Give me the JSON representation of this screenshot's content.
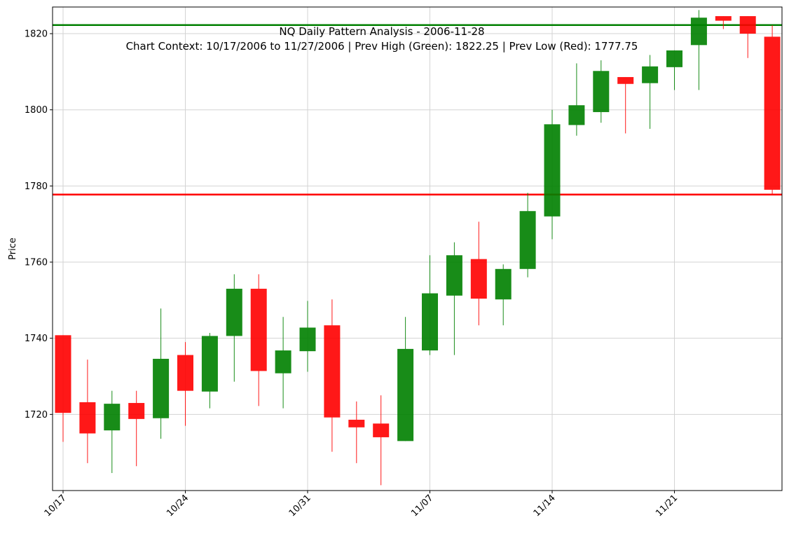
{
  "chart_data": {
    "type": "candlestick",
    "title": "NQ Daily Pattern Analysis - 2006-11-28",
    "subtitle": "Chart Context: 10/17/2006 to 11/27/2006 | Prev High (Green): 1822.25 | Prev Low (Red): 1777.75",
    "ylabel": "Price",
    "xlabel": "",
    "ylim": [
      1700,
      1827
    ],
    "y_ticks": [
      1720,
      1740,
      1760,
      1780,
      1800,
      1820
    ],
    "x_ticks": [
      {
        "label": "10/17",
        "index": 0
      },
      {
        "label": "10/24",
        "index": 5
      },
      {
        "label": "10/31",
        "index": 10
      },
      {
        "label": "11/07",
        "index": 15
      },
      {
        "label": "11/14",
        "index": 20
      },
      {
        "label": "11/21",
        "index": 25
      }
    ],
    "grid": true,
    "colors": {
      "up": "#008000",
      "down": "#ff0000",
      "prev_high": "#008000",
      "prev_low": "#ff0000"
    },
    "reference_lines": [
      {
        "value": 1822.25,
        "color": "#008000"
      },
      {
        "value": 1777.75,
        "color": "#ff0000"
      }
    ],
    "candles": [
      {
        "date": "10/17",
        "open": 1740.8,
        "high": 1740.8,
        "low": 1712.8,
        "close": 1720.4
      },
      {
        "date": "10/18",
        "open": 1723.2,
        "high": 1734.4,
        "low": 1707.2,
        "close": 1715.0
      },
      {
        "date": "10/19",
        "open": 1715.8,
        "high": 1726.2,
        "low": 1704.6,
        "close": 1722.8
      },
      {
        "date": "10/20",
        "open": 1723.0,
        "high": 1726.2,
        "low": 1706.4,
        "close": 1718.8
      },
      {
        "date": "10/23",
        "open": 1719.0,
        "high": 1747.8,
        "low": 1713.6,
        "close": 1734.6
      },
      {
        "date": "10/24",
        "open": 1735.6,
        "high": 1739.0,
        "low": 1717.0,
        "close": 1726.2
      },
      {
        "date": "10/25",
        "open": 1726.0,
        "high": 1741.4,
        "low": 1721.6,
        "close": 1740.6
      },
      {
        "date": "10/26",
        "open": 1740.6,
        "high": 1756.8,
        "low": 1728.6,
        "close": 1753.0
      },
      {
        "date": "10/27",
        "open": 1753.0,
        "high": 1756.8,
        "low": 1722.2,
        "close": 1731.4
      },
      {
        "date": "10/30",
        "open": 1730.8,
        "high": 1745.6,
        "low": 1721.6,
        "close": 1736.8
      },
      {
        "date": "10/31",
        "open": 1736.6,
        "high": 1749.8,
        "low": 1731.2,
        "close": 1742.8
      },
      {
        "date": "11/01",
        "open": 1743.4,
        "high": 1750.2,
        "low": 1710.2,
        "close": 1719.2
      },
      {
        "date": "11/02",
        "open": 1718.6,
        "high": 1723.4,
        "low": 1707.2,
        "close": 1716.6
      },
      {
        "date": "11/03",
        "open": 1717.6,
        "high": 1725.0,
        "low": 1701.4,
        "close": 1714.0
      },
      {
        "date": "11/06",
        "open": 1713.0,
        "high": 1745.6,
        "low": 1713.0,
        "close": 1737.2
      },
      {
        "date": "11/07",
        "open": 1736.8,
        "high": 1761.8,
        "low": 1735.6,
        "close": 1751.8
      },
      {
        "date": "11/08",
        "open": 1751.2,
        "high": 1765.2,
        "low": 1735.6,
        "close": 1761.8
      },
      {
        "date": "11/09",
        "open": 1760.8,
        "high": 1770.6,
        "low": 1743.4,
        "close": 1750.4
      },
      {
        "date": "11/10",
        "open": 1750.2,
        "high": 1759.4,
        "low": 1743.4,
        "close": 1758.2
      },
      {
        "date": "11/13",
        "open": 1758.2,
        "high": 1778.2,
        "low": 1756.0,
        "close": 1773.4
      },
      {
        "date": "11/14",
        "open": 1772.0,
        "high": 1800.0,
        "low": 1766.0,
        "close": 1796.2
      },
      {
        "date": "11/15",
        "open": 1796.0,
        "high": 1812.2,
        "low": 1793.2,
        "close": 1801.2
      },
      {
        "date": "11/16",
        "open": 1799.4,
        "high": 1813.0,
        "low": 1796.6,
        "close": 1810.2
      },
      {
        "date": "11/17",
        "open": 1808.6,
        "high": 1808.6,
        "low": 1793.8,
        "close": 1806.8
      },
      {
        "date": "11/20",
        "open": 1807.0,
        "high": 1814.4,
        "low": 1795.0,
        "close": 1811.4
      },
      {
        "date": "11/21",
        "open": 1811.2,
        "high": 1815.6,
        "low": 1805.2,
        "close": 1815.6
      },
      {
        "date": "11/22",
        "open": 1817.0,
        "high": 1826.2,
        "low": 1805.2,
        "close": 1824.2
      },
      {
        "date": "11/24",
        "open": 1824.6,
        "high": 1824.6,
        "low": 1821.2,
        "close": 1823.4
      },
      {
        "date": "11/27",
        "open": 1824.6,
        "high": 1824.6,
        "low": 1813.6,
        "close": 1820.0
      },
      {
        "date": "11/28",
        "open": 1819.2,
        "high": 1822.2,
        "low": 1777.8,
        "close": 1779.0
      }
    ]
  }
}
